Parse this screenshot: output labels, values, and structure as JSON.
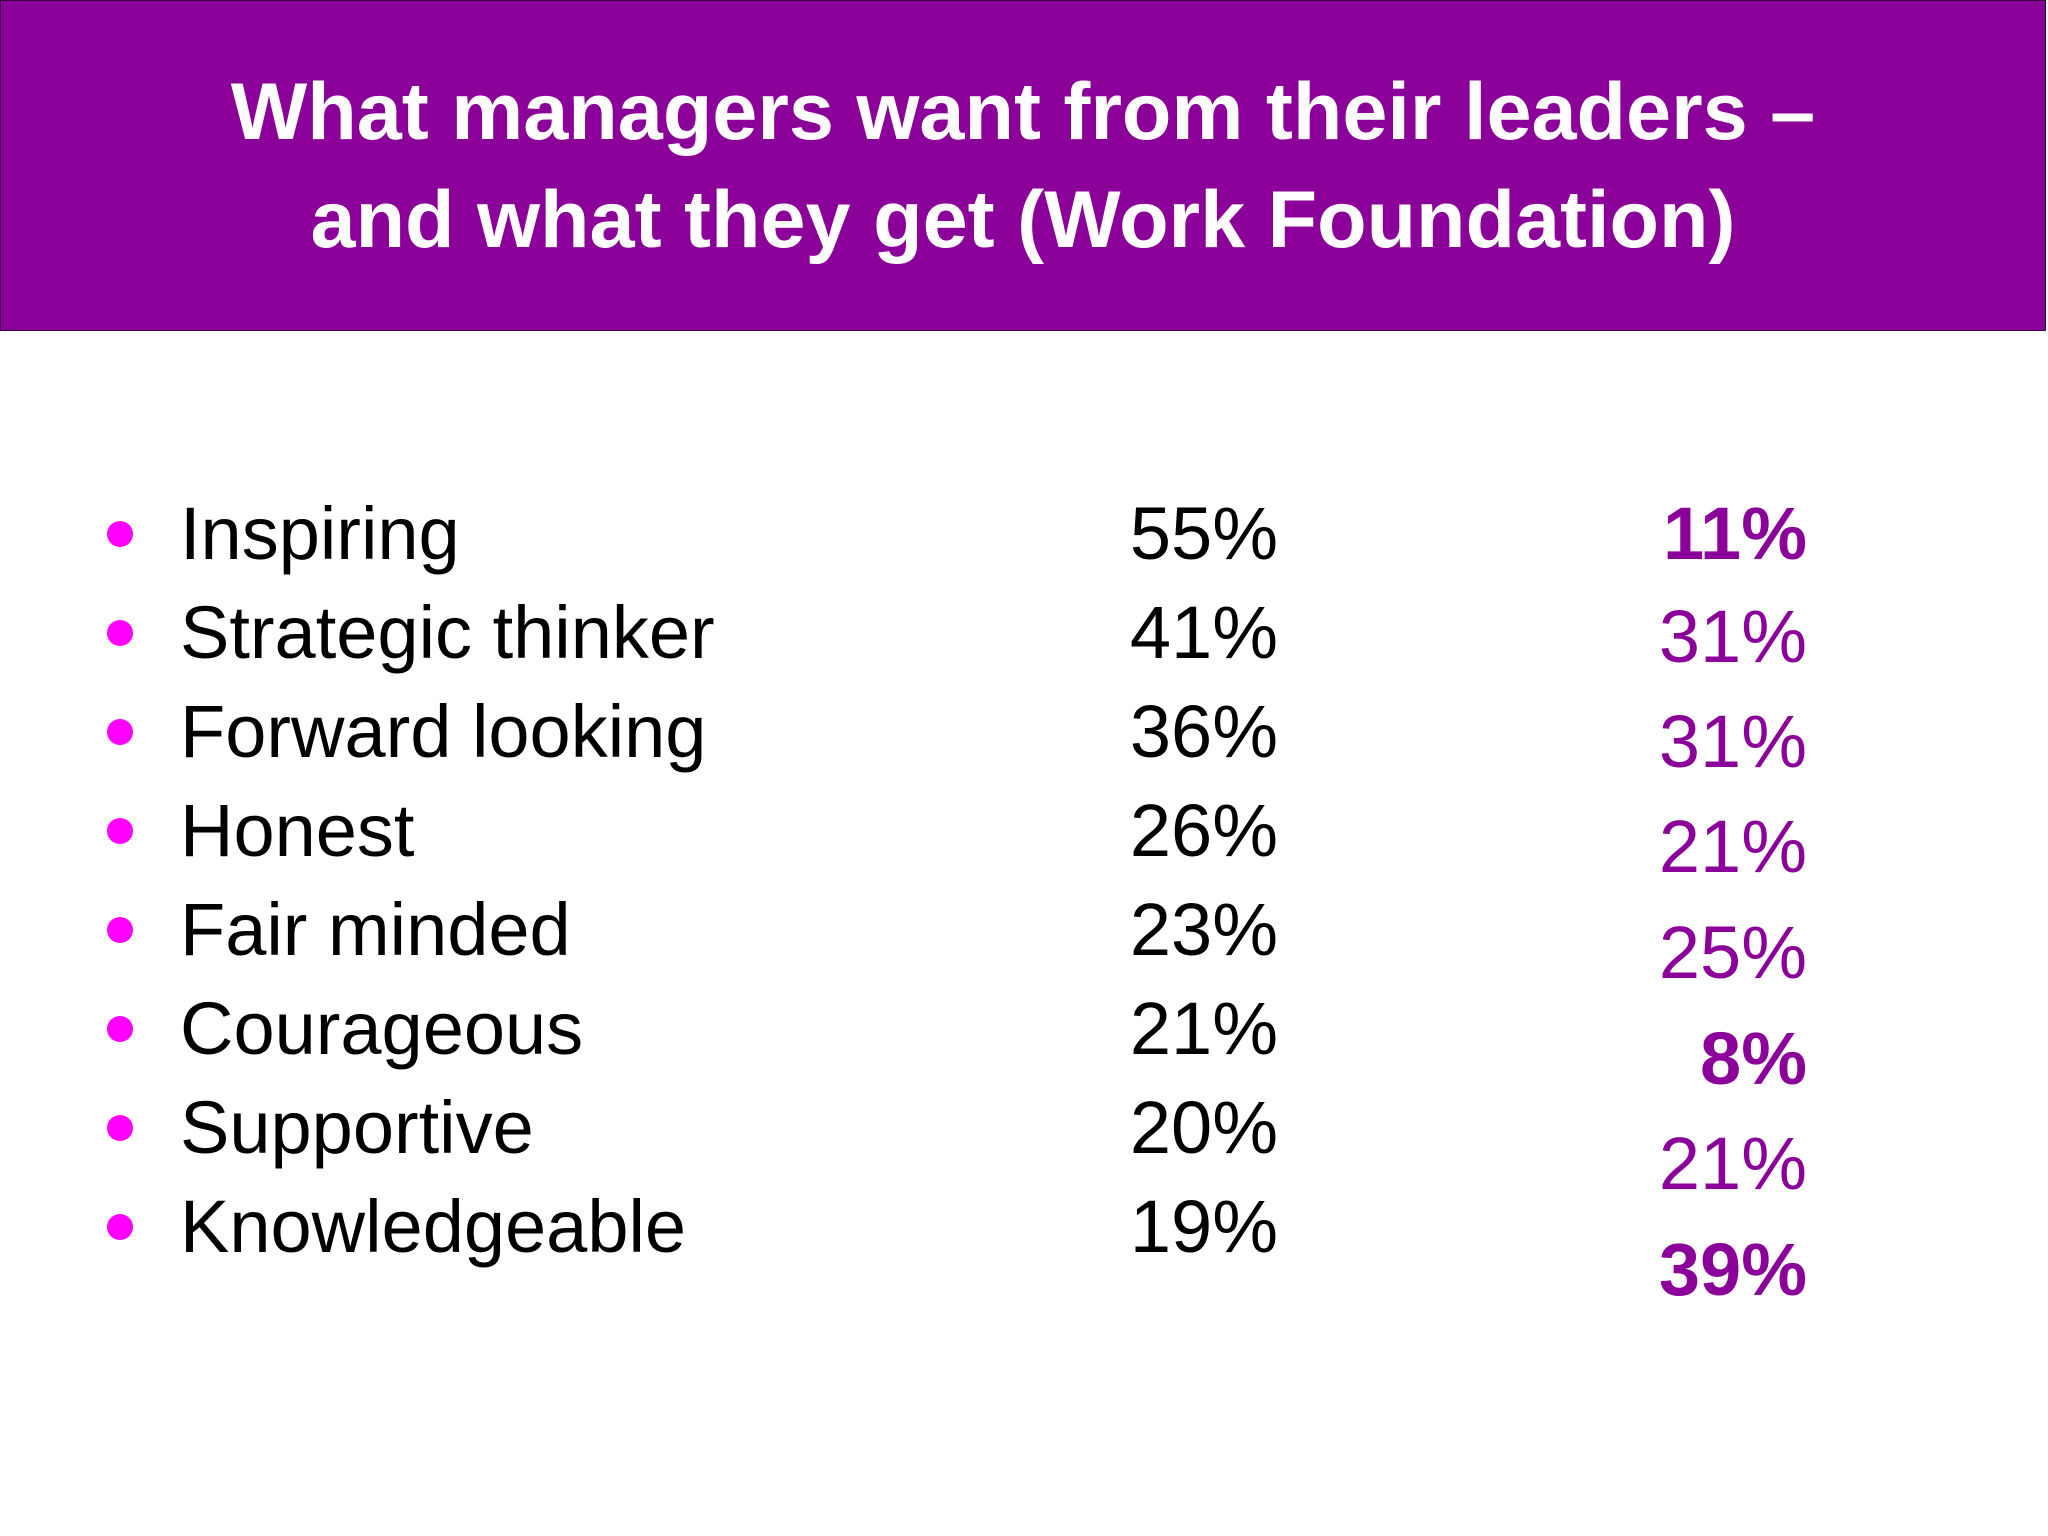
{
  "title": {
    "line1": "What managers want from their leaders –",
    "line2": "and what they get (Work Foundation)"
  },
  "colors": {
    "title_bg": "#8b0099",
    "bullet": "#ff00ff",
    "get_values": "#8b0099"
  },
  "rows": [
    {
      "label": "Inspiring",
      "want": "55%",
      "get": "11%",
      "get_bold": true
    },
    {
      "label": "Strategic thinker",
      "want": "41%",
      "get": "31%",
      "get_bold": false
    },
    {
      "label": "Forward looking",
      "want": "36%",
      "get": "31%",
      "get_bold": false
    },
    {
      "label": "Honest",
      "want": "26%",
      "get": "21%",
      "get_bold": false
    },
    {
      "label": "Fair minded",
      "want": "23%",
      "get": "25%",
      "get_bold": false
    },
    {
      "label": "Courageous",
      "want": "21%",
      "get": "8%",
      "get_bold": true
    },
    {
      "label": "Supportive",
      "want": "20%",
      "get": "21%",
      "get_bold": false
    },
    {
      "label": "Knowledgeable",
      "want": "19%",
      "get": "39%",
      "get_bold": true
    }
  ]
}
